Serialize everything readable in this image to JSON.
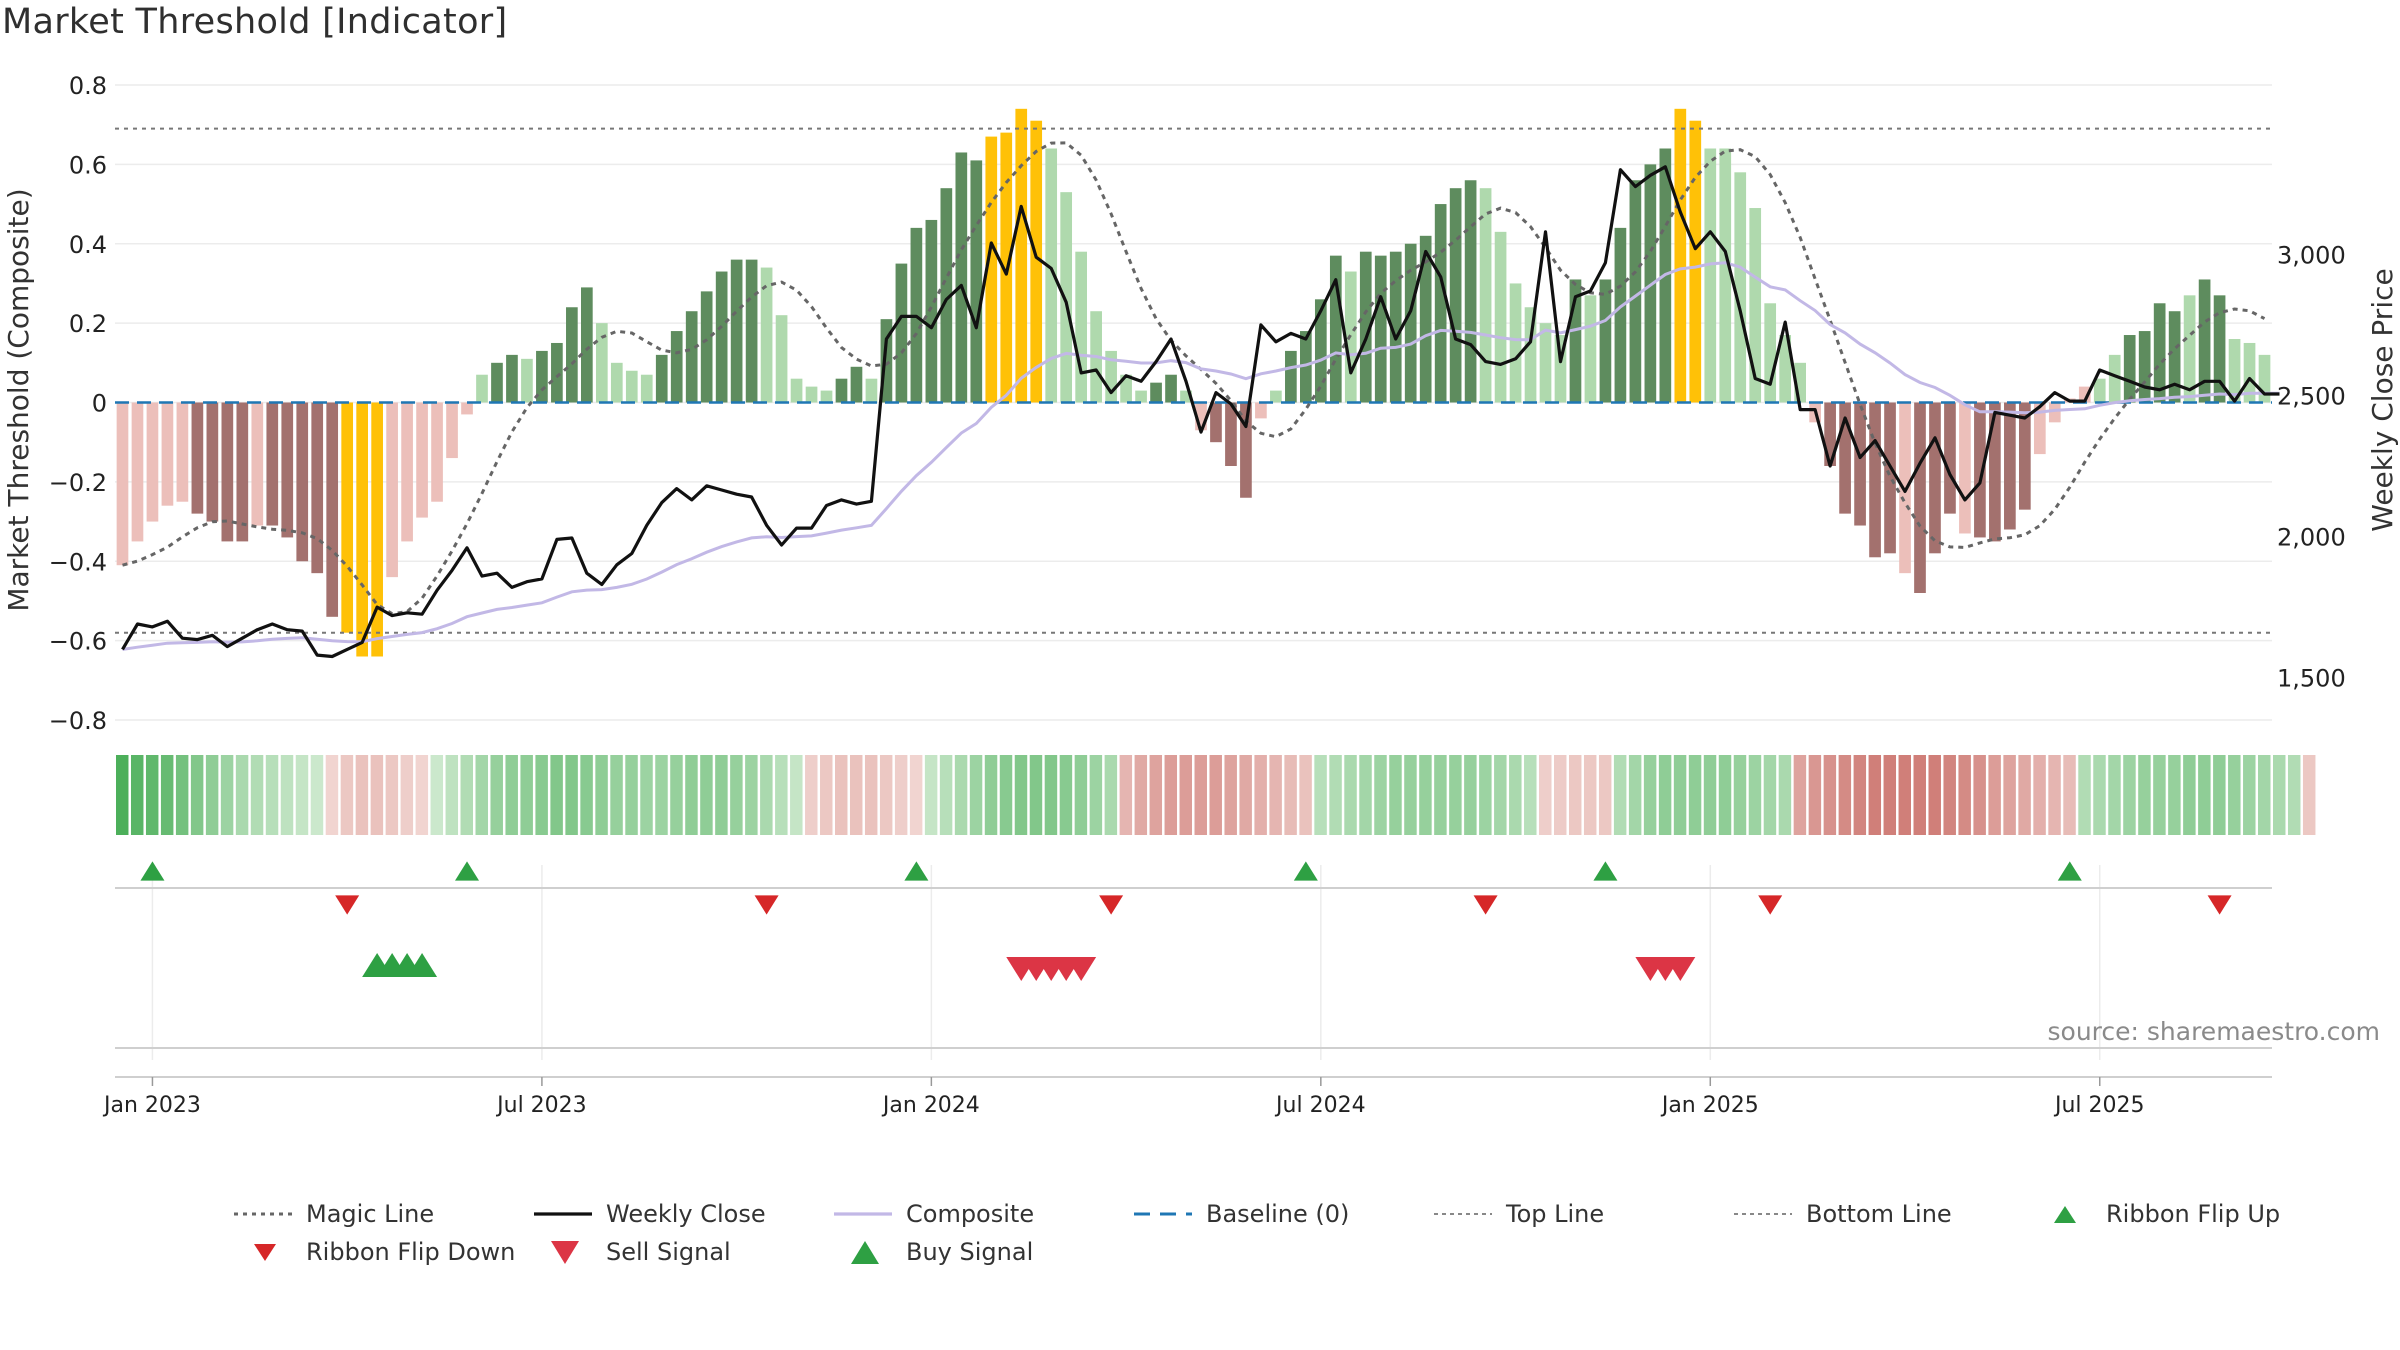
{
  "title": "Market Threshold [Indicator]",
  "colors": {
    "strong_up": "#5e8c5e",
    "weak_up": "#afd9ad",
    "strong_down": "#a3716e",
    "weak_down": "#ecbfba",
    "extreme": "#ffc107",
    "magic": "#666666",
    "close": "#111111",
    "composite": "#c2b8e6",
    "baseline": "#1f77b4",
    "flip_up": "#2ea043",
    "flip_down": "#d62728",
    "sell": "#dc3545",
    "buy": "#2ea043"
  },
  "chart_data": {
    "type": "bar",
    "title": "Market Threshold [Indicator]",
    "ylabel": "Market Threshold (Composite)",
    "y2label": "Weekly Close Price",
    "ylim": [
      -0.8,
      0.8
    ],
    "y2lim": [
      1350,
      3600
    ],
    "yticks": [
      "0.8",
      "0.6",
      "0.4",
      "0.2",
      "0",
      "−0.2",
      "−0.4",
      "−0.6",
      "−0.8"
    ],
    "y2ticks": [
      "3,000",
      "2,500",
      "2,000",
      "1,500"
    ],
    "xticks": [
      "Jan 2023",
      "Jul 2023",
      "Jan 2024",
      "Jul 2024",
      "Jan 2025",
      "Jul 2025"
    ],
    "top_line": 0.69,
    "bottom_line": -0.58,
    "source": "source: sharemaestro.com",
    "series": [
      {
        "name": "Magic Line",
        "style": "dotted",
        "color": "#666666",
        "smoothed_from": "bars"
      },
      {
        "name": "Weekly Close",
        "color": "#111111",
        "axis": "right",
        "values": [
          1600,
          1690,
          1680,
          1700,
          1640,
          1635,
          1650,
          1610,
          1640,
          1670,
          1690,
          1670,
          1665,
          1580,
          1575,
          1600,
          1625,
          1750,
          1720,
          1730,
          1725,
          1810,
          1880,
          1960,
          1860,
          1870,
          1820,
          1840,
          1850,
          1990,
          1995,
          1870,
          1830,
          1900,
          1940,
          2040,
          2120,
          2170,
          2130,
          2180,
          2165,
          2150,
          2140,
          2040,
          1970,
          2030,
          2030,
          2110,
          2130,
          2115,
          2125,
          2700,
          2780,
          2780,
          2740,
          2840,
          2890,
          2740,
          3040,
          2930,
          3170,
          2990,
          2950,
          2830,
          2580,
          2590,
          2510,
          2570,
          2550,
          2620,
          2700,
          2550,
          2370,
          2510,
          2470,
          2390,
          2750,
          2690,
          2720,
          2700,
          2800,
          2910,
          2580,
          2700,
          2850,
          2700,
          2800,
          3010,
          2920,
          2700,
          2680,
          2620,
          2610,
          2630,
          2690,
          3080,
          2620,
          2850,
          2870,
          2970,
          3300,
          3240,
          3280,
          3310,
          3150,
          3020,
          3080,
          3010,
          2800,
          2560,
          2540,
          2760,
          2450,
          2450,
          2250,
          2420,
          2280,
          2340,
          2250,
          2160,
          2260,
          2350,
          2220,
          2130,
          2190,
          2440,
          2430,
          2420,
          2460,
          2510,
          2480,
          2480,
          2590,
          2570,
          2550,
          2530,
          2520,
          2540,
          2520,
          2550,
          2550,
          2480,
          2560,
          2505,
          2505
        ]
      },
      {
        "name": "Composite",
        "color": "#c2b8e6",
        "smoothed_from": "bars"
      },
      {
        "name": "Baseline (0)",
        "style": "dashed",
        "color": "#1f77b4",
        "value": 0
      },
      {
        "name": "Top Line",
        "style": "dotted",
        "value": 0.69
      },
      {
        "name": "Bottom Line",
        "style": "dotted",
        "value": -0.58
      },
      {
        "name": "Ribbon Flip Up",
        "marker": "triangle-up",
        "dates": [
          "2023-01-02",
          "2023-05-29",
          "2023-12-25",
          "2024-06-24",
          "2024-11-11",
          "2025-06-16"
        ]
      },
      {
        "name": "Ribbon Flip Down",
        "marker": "triangle-down",
        "dates": [
          "2023-04-03",
          "2023-10-16",
          "2024-03-25",
          "2024-09-16",
          "2025-01-27",
          "2025-08-25"
        ]
      },
      {
        "name": "Sell Signal",
        "marker": "triangle-down",
        "dates": [
          "2024-02-12",
          "2024-02-19",
          "2024-02-26",
          "2024-03-04",
          "2024-03-11",
          "2024-12-02",
          "2024-12-09",
          "2024-12-16"
        ]
      },
      {
        "name": "Buy Signal",
        "marker": "triangle-up",
        "dates": [
          "2023-04-17",
          "2023-04-24",
          "2023-05-01",
          "2023-05-08"
        ]
      }
    ],
    "bars": [
      -0.41,
      -0.35,
      -0.3,
      -0.26,
      -0.25,
      -0.28,
      -0.3,
      -0.35,
      -0.35,
      -0.31,
      -0.31,
      -0.34,
      -0.4,
      -0.43,
      -0.54,
      -0.58,
      -0.64,
      -0.64,
      -0.44,
      -0.35,
      -0.29,
      -0.25,
      -0.14,
      -0.03,
      0.07,
      0.1,
      0.12,
      0.11,
      0.13,
      0.15,
      0.24,
      0.29,
      0.2,
      0.1,
      0.08,
      0.07,
      0.12,
      0.18,
      0.23,
      0.28,
      0.33,
      0.36,
      0.36,
      0.34,
      0.22,
      0.06,
      0.04,
      0.03,
      0.06,
      0.09,
      0.06,
      0.21,
      0.35,
      0.44,
      0.46,
      0.54,
      0.63,
      0.61,
      0.67,
      0.68,
      0.74,
      0.71,
      0.64,
      0.53,
      0.38,
      0.23,
      0.13,
      0.07,
      0.03,
      0.05,
      0.07,
      0.03,
      -0.07,
      -0.1,
      -0.16,
      -0.24,
      -0.04,
      0.03,
      0.13,
      0.18,
      0.26,
      0.37,
      0.33,
      0.38,
      0.37,
      0.38,
      0.4,
      0.42,
      0.5,
      0.54,
      0.56,
      0.54,
      0.43,
      0.3,
      0.24,
      0.2,
      0.17,
      0.31,
      0.27,
      0.31,
      0.44,
      0.56,
      0.6,
      0.64,
      0.74,
      0.71,
      0.64,
      0.64,
      0.58,
      0.49,
      0.25,
      0.17,
      0.1,
      -0.05,
      -0.16,
      -0.28,
      -0.31,
      -0.39,
      -0.38,
      -0.43,
      -0.48,
      -0.38,
      -0.28,
      -0.33,
      -0.34,
      -0.35,
      -0.32,
      -0.27,
      -0.13,
      -0.05,
      0.01,
      0.04,
      0.06,
      0.12,
      0.17,
      0.18,
      0.25,
      0.23,
      0.27,
      0.31,
      0.27,
      0.16,
      0.15,
      0.12
    ],
    "bar_class": [
      "wd",
      "wd",
      "wd",
      "wd",
      "wd",
      "sd",
      "sd",
      "sd",
      "sd",
      "wd",
      "sd",
      "sd",
      "sd",
      "sd",
      "sd",
      "ex",
      "ex",
      "ex",
      "wd",
      "wd",
      "wd",
      "wd",
      "wd",
      "wd",
      "wu",
      "su",
      "su",
      "wu",
      "su",
      "su",
      "su",
      "su",
      "wu",
      "wu",
      "wu",
      "wu",
      "su",
      "su",
      "su",
      "su",
      "su",
      "su",
      "su",
      "wu",
      "wu",
      "wu",
      "wu",
      "wu",
      "su",
      "su",
      "wu",
      "su",
      "su",
      "su",
      "su",
      "su",
      "su",
      "su",
      "ex",
      "ex",
      "ex",
      "ex",
      "wu",
      "wu",
      "wu",
      "wu",
      "wu",
      "wu",
      "wu",
      "su",
      "su",
      "wu",
      "wd",
      "sd",
      "sd",
      "sd",
      "wd",
      "wu",
      "su",
      "su",
      "su",
      "su",
      "wu",
      "su",
      "su",
      "su",
      "su",
      "su",
      "su",
      "su",
      "su",
      "wu",
      "wu",
      "wu",
      "wu",
      "wu",
      "wu",
      "su",
      "wu",
      "su",
      "su",
      "su",
      "su",
      "su",
      "ex",
      "ex",
      "wu",
      "wu",
      "wu",
      "wu",
      "wu",
      "wu",
      "wu",
      "wd",
      "sd",
      "sd",
      "sd",
      "sd",
      "sd",
      "wd",
      "sd",
      "sd",
      "sd",
      "wd",
      "sd",
      "sd",
      "sd",
      "sd",
      "wd",
      "wd",
      "wd",
      "wd",
      "wu",
      "wu",
      "su",
      "su",
      "su",
      "su",
      "wu",
      "su",
      "su",
      "wu",
      "wu",
      "wu"
    ],
    "ribbon": [
      1.0,
      0.9,
      0.85,
      0.8,
      0.7,
      0.6,
      0.5,
      0.4,
      0.3,
      0.25,
      0.2,
      0.15,
      0.1,
      0.05,
      -0.05,
      -0.15,
      -0.2,
      -0.2,
      -0.15,
      -0.1,
      -0.05,
      0.05,
      0.15,
      0.25,
      0.35,
      0.45,
      0.5,
      0.5,
      0.55,
      0.6,
      0.6,
      0.55,
      0.5,
      0.45,
      0.45,
      0.4,
      0.4,
      0.45,
      0.5,
      0.5,
      0.5,
      0.45,
      0.4,
      0.3,
      0.2,
      0.1,
      -0.1,
      -0.15,
      -0.2,
      -0.2,
      -0.2,
      -0.15,
      -0.1,
      -0.05,
      0.1,
      0.2,
      0.3,
      0.4,
      0.5,
      0.55,
      0.6,
      0.6,
      0.6,
      0.55,
      0.5,
      0.4,
      0.3,
      -0.3,
      -0.4,
      -0.45,
      -0.5,
      -0.5,
      -0.5,
      -0.5,
      -0.45,
      -0.4,
      -0.35,
      -0.3,
      -0.25,
      -0.2,
      0.2,
      0.25,
      0.3,
      0.35,
      0.4,
      0.45,
      0.45,
      0.45,
      0.45,
      0.45,
      0.45,
      0.4,
      0.35,
      0.3,
      0.2,
      -0.1,
      -0.12,
      -0.15,
      -0.15,
      -0.15,
      0.25,
      0.35,
      0.45,
      0.5,
      0.5,
      0.5,
      0.5,
      0.5,
      0.45,
      0.4,
      0.35,
      0.3,
      -0.45,
      -0.55,
      -0.6,
      -0.65,
      -0.7,
      -0.75,
      -0.75,
      -0.75,
      -0.75,
      -0.75,
      -0.7,
      -0.65,
      -0.6,
      -0.5,
      -0.45,
      -0.4,
      -0.35,
      -0.3,
      -0.25,
      0.25,
      0.3,
      0.35,
      0.4,
      0.45,
      0.45,
      0.45,
      0.5,
      0.5,
      0.5,
      0.45,
      0.4,
      0.35,
      0.3,
      0.25,
      -0.15
    ]
  },
  "legend": [
    {
      "label": "Magic Line",
      "type": "dotted",
      "color": "#666666"
    },
    {
      "label": "Weekly Close",
      "type": "solid",
      "color": "#111111"
    },
    {
      "label": "Composite",
      "type": "solid",
      "color": "#c2b8e6"
    },
    {
      "label": "Baseline (0)",
      "type": "dashed",
      "color": "#1f77b4"
    },
    {
      "label": "Top Line",
      "type": "dotted-light",
      "color": "#888888"
    },
    {
      "label": "Bottom Line",
      "type": "dotted-light",
      "color": "#888888"
    },
    {
      "label": "Ribbon Flip Up",
      "type": "tri-up",
      "color": "#2ea043"
    },
    {
      "label": "Ribbon Flip Down",
      "type": "tri-down",
      "color": "#d62728"
    },
    {
      "label": "Sell Signal",
      "type": "tri-down-big",
      "color": "#dc3545"
    },
    {
      "label": "Buy Signal",
      "type": "tri-up-big",
      "color": "#2ea043"
    }
  ]
}
